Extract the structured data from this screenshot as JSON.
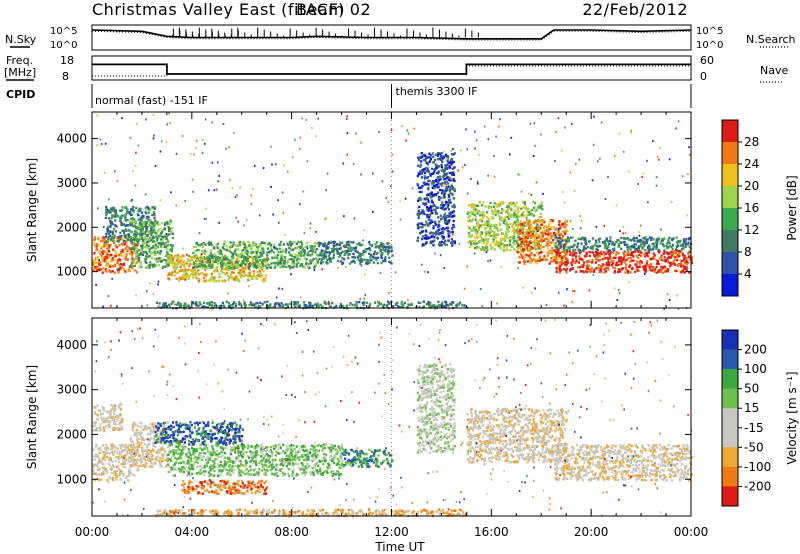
{
  "header": {
    "title": "Christmas Valley East (fitACF)",
    "beam": "Beam 02",
    "date": "22/Feb/2012"
  },
  "panel_labels": {
    "nsky": "N.Sky",
    "nsearch": "N.Search",
    "freq_line1": "Freq.",
    "freq_line2": "[MHz]",
    "nave": "Nave",
    "cpid": "CPID"
  },
  "cpid": {
    "first": "normal (fast) -151 IF",
    "second": "themis 3300 IF",
    "switch_time_hours": 12.0
  },
  "colors": {
    "power_scale": [
      "#0a1ad8",
      "#2d52a8",
      "#3f7a62",
      "#3ea84e",
      "#9dd44a",
      "#f0c01e",
      "#ef7a15",
      "#e01b14"
    ],
    "velocity_scale": [
      "#e01b14",
      "#ef7a15",
      "#f0a834",
      "#c8c8c0",
      "#c8c8c0",
      "#6cc24a",
      "#3aa83a",
      "#2a5ab0",
      "#1a2fb8"
    ]
  },
  "chart_data": [
    {
      "type": "line",
      "name": "noise",
      "ylabel": "N.Sky",
      "y_ticks": [
        "10^5",
        "10^0"
      ],
      "y_ticks_right": [
        "10^5",
        "10^0"
      ],
      "x_hours": [
        0,
        2,
        3,
        4,
        6,
        8,
        9,
        11,
        13,
        15,
        16,
        18,
        18.5,
        20,
        22,
        24
      ],
      "series": [
        {
          "name": "N.Sky",
          "values": [
            0.8,
            0.75,
            0.55,
            0.5,
            0.5,
            0.5,
            0.55,
            0.5,
            0.5,
            0.45,
            0.45,
            0.45,
            0.8,
            0.8,
            0.75,
            0.8
          ]
        },
        {
          "name": "N.Search",
          "values": [
            0.75,
            0.7,
            0.5,
            0.45,
            0.45,
            0.45,
            0.5,
            0.45,
            0.45,
            0.4,
            0.4,
            0.4,
            0.75,
            0.75,
            0.7,
            0.75
          ]
        }
      ]
    },
    {
      "type": "line",
      "name": "frequency",
      "ylabel": "Freq. [MHz]",
      "y_ticks": [
        "18",
        "8"
      ],
      "y_ticks_right": [
        "60",
        "0"
      ],
      "x_hours": [
        0,
        3,
        3.001,
        15,
        15.001,
        24
      ],
      "series": [
        {
          "name": "Freq.",
          "values": [
            14.5,
            14.5,
            10.5,
            10.5,
            14.5,
            14.5
          ]
        },
        {
          "name": "Nave",
          "values": [
            10,
            10,
            15,
            15,
            35,
            35
          ]
        }
      ]
    },
    {
      "type": "heatmap",
      "name": "power",
      "ylabel": "Slant Range [km]",
      "yticks": [
        1000,
        2000,
        3000,
        4000
      ],
      "ylim": [
        180,
        4600
      ],
      "xlim_hours": [
        0,
        24
      ],
      "colorbar_label": "Power [dB]",
      "colorbar_ticks": [
        4,
        8,
        12,
        16,
        20,
        24,
        28
      ],
      "bands": [
        {
          "t0": 0.0,
          "t1": 1.8,
          "r0": 1000,
          "r1": 1800,
          "level": 6
        },
        {
          "t0": 0.5,
          "t1": 2.5,
          "r0": 1700,
          "r1": 2500,
          "level": 2
        },
        {
          "t0": 1.5,
          "t1": 3.2,
          "r0": 1100,
          "r1": 2200,
          "level": 3
        },
        {
          "t0": 3.0,
          "t1": 7.0,
          "r0": 800,
          "r1": 1400,
          "level": 5
        },
        {
          "t0": 4.0,
          "t1": 9.0,
          "r0": 1100,
          "r1": 1700,
          "level": 3
        },
        {
          "t0": 9.0,
          "t1": 12.0,
          "r0": 1200,
          "r1": 1700,
          "level": 2
        },
        {
          "t0": 13.0,
          "t1": 14.5,
          "r0": 1600,
          "r1": 3700,
          "level": 1
        },
        {
          "t0": 15.0,
          "t1": 18.0,
          "r0": 1500,
          "r1": 2600,
          "level": 4
        },
        {
          "t0": 17.0,
          "t1": 19.0,
          "r0": 1200,
          "r1": 2200,
          "level": 6
        },
        {
          "t0": 18.5,
          "t1": 24.0,
          "r0": 1000,
          "r1": 1500,
          "level": 7
        },
        {
          "t0": 18.5,
          "t1": 24.0,
          "r0": 1500,
          "r1": 1800,
          "level": 2
        },
        {
          "t0": 2.5,
          "t1": 15.0,
          "r0": 200,
          "r1": 350,
          "level": 2
        }
      ]
    },
    {
      "type": "heatmap",
      "name": "velocity",
      "ylabel": "Slant Range [km]",
      "yticks": [
        1000,
        2000,
        3000,
        4000
      ],
      "ylim": [
        180,
        4600
      ],
      "xlim_hours": [
        0,
        24
      ],
      "xticks": [
        "00:00",
        "04:00",
        "08:00",
        "12:00",
        "16:00",
        "20:00",
        "00:00"
      ],
      "xlabel": "Time UT",
      "colorbar_label": "Velocity [m s⁻¹]",
      "colorbar_ticks": [
        -200,
        -100,
        -50,
        -15,
        15,
        50,
        100,
        200
      ],
      "bands": [
        {
          "t0": 0.0,
          "t1": 1.8,
          "r0": 1000,
          "r1": 1800,
          "level": 3
        },
        {
          "t0": 0.0,
          "t1": 1.2,
          "r0": 2100,
          "r1": 2700,
          "level": 3
        },
        {
          "t0": 1.5,
          "t1": 3.0,
          "r0": 1300,
          "r1": 2300,
          "level": 3
        },
        {
          "t0": 3.0,
          "t1": 10.0,
          "r0": 1100,
          "r1": 1800,
          "level": 5
        },
        {
          "t0": 2.5,
          "t1": 6.0,
          "r0": 1800,
          "r1": 2300,
          "level": 7
        },
        {
          "t0": 10.0,
          "t1": 12.0,
          "r0": 1300,
          "r1": 1700,
          "level": 6
        },
        {
          "t0": 3.5,
          "t1": 7.0,
          "r0": 700,
          "r1": 1000,
          "level": 1
        },
        {
          "t0": 13.0,
          "t1": 14.5,
          "r0": 1600,
          "r1": 3600,
          "level": 4
        },
        {
          "t0": 15.0,
          "t1": 19.0,
          "r0": 1400,
          "r1": 2600,
          "level": 3
        },
        {
          "t0": 18.5,
          "t1": 24.0,
          "r0": 1000,
          "r1": 1800,
          "level": 3
        },
        {
          "t0": 2.5,
          "t1": 15.0,
          "r0": 200,
          "r1": 350,
          "level": 2
        }
      ]
    }
  ]
}
